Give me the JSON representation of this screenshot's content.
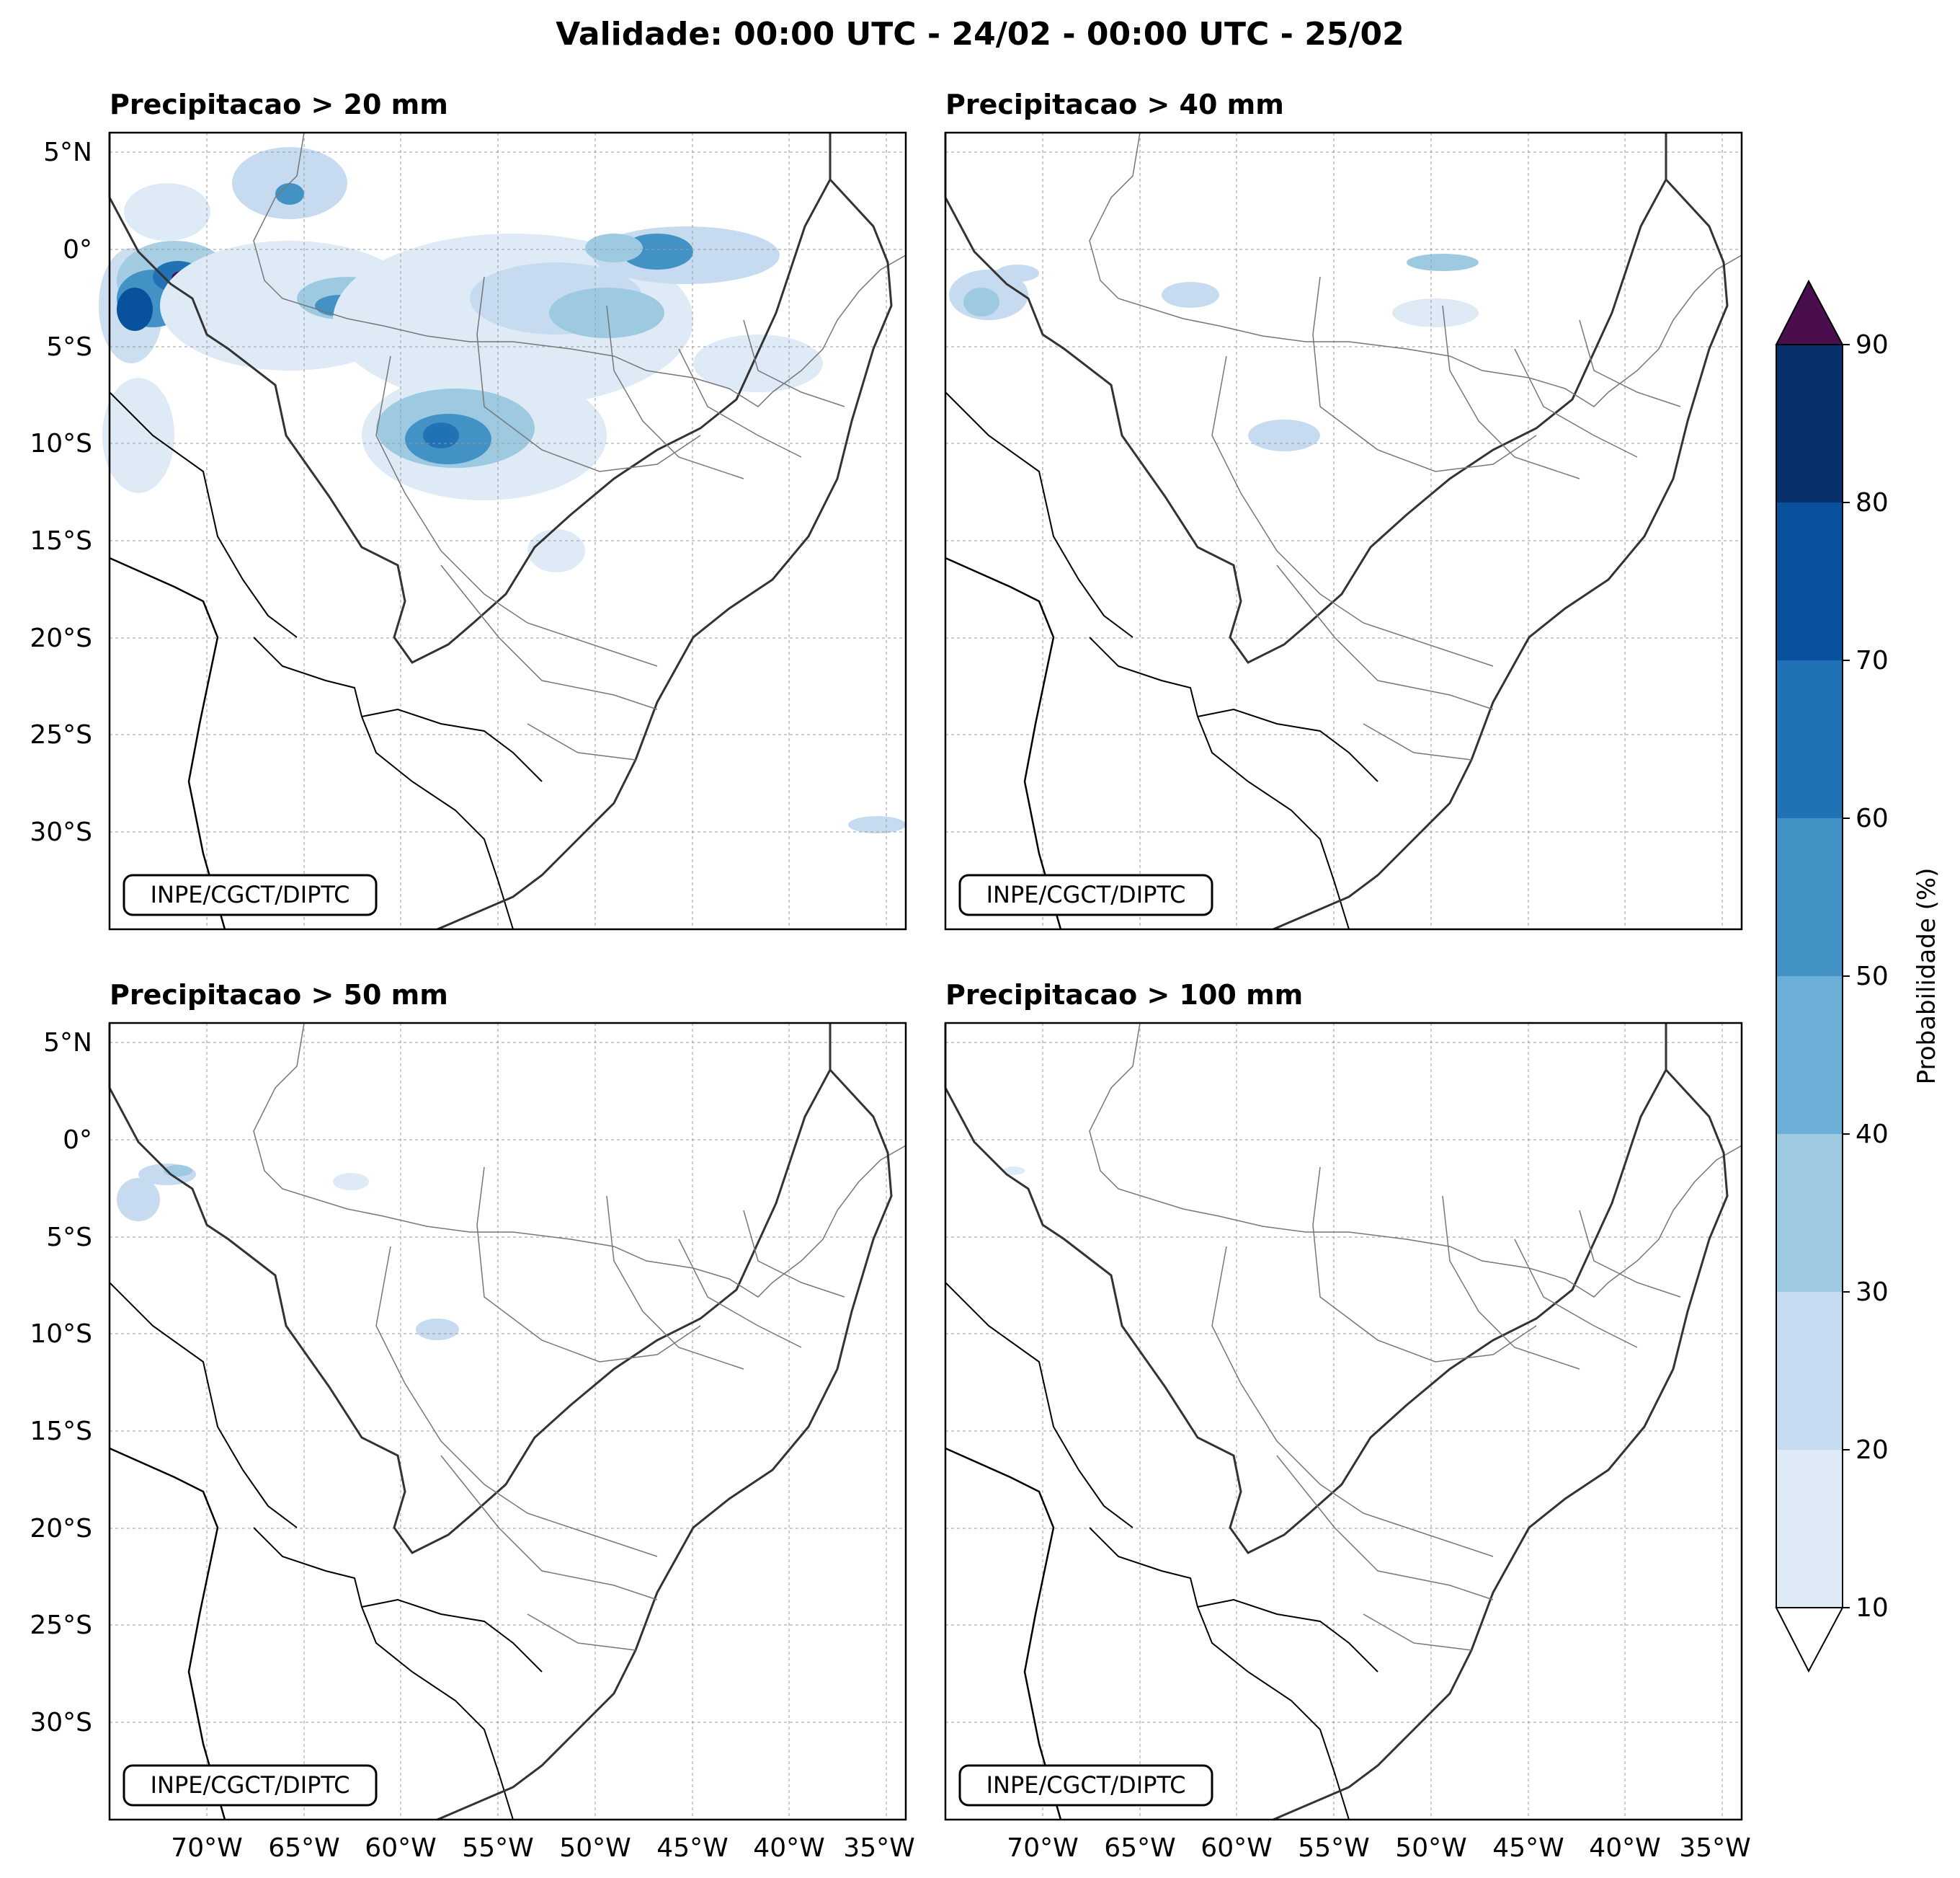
{
  "figure": {
    "title": "Validade: 00:00 UTC - 24/02 - 00:00 UTC - 25/02"
  },
  "panels": [
    {
      "title": "Precipitacao > 20 mm",
      "credit": "INPE/CGCT/DIPTC"
    },
    {
      "title": "Precipitacao > 40 mm",
      "credit": "INPE/CGCT/DIPTC"
    },
    {
      "title": "Precipitacao > 50 mm",
      "credit": "INPE/CGCT/DIPTC"
    },
    {
      "title": "Precipitacao > 100 mm",
      "credit": "INPE/CGCT/DIPTC"
    }
  ],
  "axes": {
    "lon_ticks": [
      "70°W",
      "65°W",
      "60°W",
      "55°W",
      "50°W",
      "45°W",
      "40°W",
      "35°W"
    ],
    "lat_ticks": [
      "5°N",
      "0°",
      "5°S",
      "10°S",
      "15°S",
      "20°S",
      "25°S",
      "30°S"
    ],
    "lon_range": [
      -75,
      -34
    ],
    "lat_range": [
      -35,
      6
    ]
  },
  "colorbar": {
    "label": "Probabilidade (%)",
    "ticks": [
      "10",
      "20",
      "30",
      "40",
      "50",
      "60",
      "70",
      "80",
      "90"
    ],
    "colors": [
      "#deebf7",
      "#c6dbef",
      "#9ecae1",
      "#6baed6",
      "#4292c6",
      "#2171b5",
      "#08519c",
      "#08306b"
    ],
    "over_color": "#4a0e4e",
    "under_color": "#ffffff"
  },
  "colors": {
    "country_border": "#000000",
    "state_border": "#777777",
    "coast": "#333333",
    "grid": "#999999"
  }
}
